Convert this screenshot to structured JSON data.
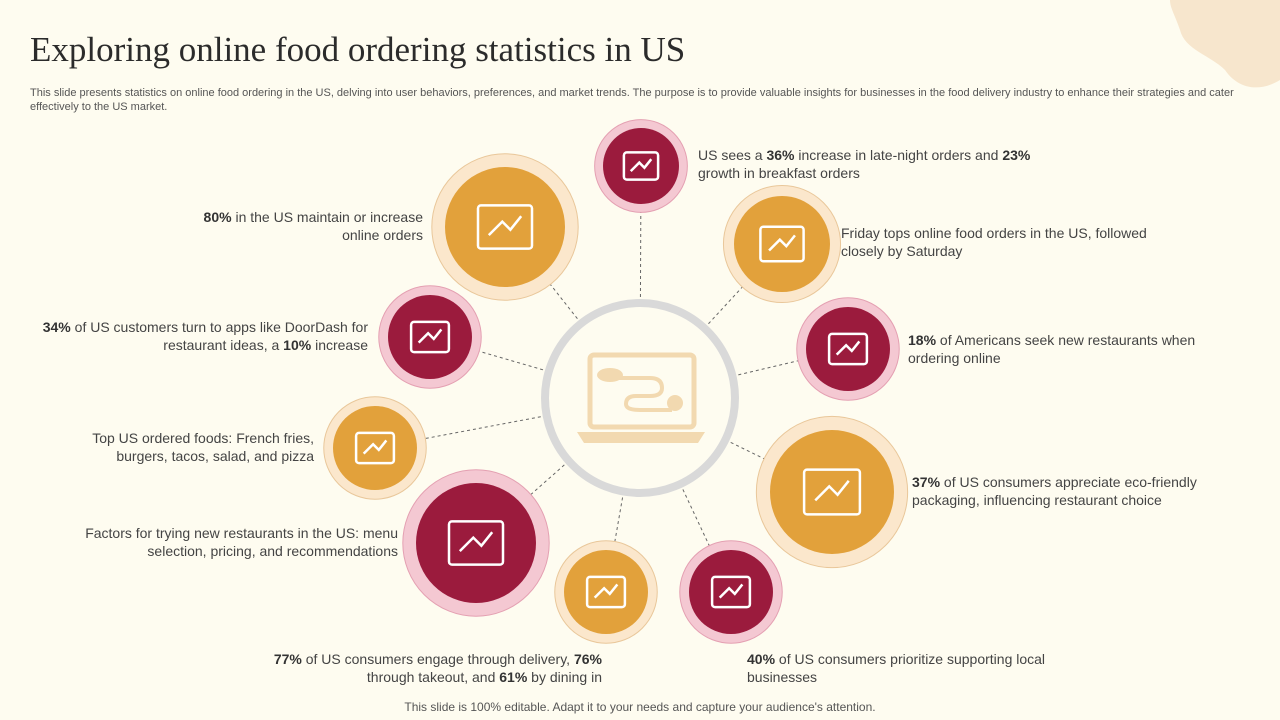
{
  "header": {
    "title": "Exploring online food ordering statistics in US",
    "description": "This slide presents statistics on online food ordering in the US, delving into user behaviors, preferences, and market trends. The purpose is to provide valuable insights for businesses in the food delivery industry to enhance their strategies and cater effectively to the US market."
  },
  "items": [
    {
      "runs": [
        {
          "text": "US sees a "
        },
        {
          "text": "36%",
          "bold": true
        },
        {
          "text": " increase in late-night orders and "
        },
        {
          "text": "23%",
          "bold": true
        },
        {
          "text": " growth in breakfast orders"
        }
      ]
    },
    {
      "runs": [
        {
          "text": "Friday tops online food orders in the US, followed closely by Saturday"
        }
      ]
    },
    {
      "runs": [
        {
          "text": "18%",
          "bold": true
        },
        {
          "text": " of Americans seek new restaurants when ordering online"
        }
      ]
    },
    {
      "runs": [
        {
          "text": "37%",
          "bold": true
        },
        {
          "text": " of US consumers appreciate eco-friendly packaging, influencing restaurant choice"
        }
      ]
    },
    {
      "runs": [
        {
          "text": "40%",
          "bold": true
        },
        {
          "text": " of US consumers prioritize supporting local businesses"
        }
      ]
    },
    {
      "runs": [
        {
          "text": "77%",
          "bold": true
        },
        {
          "text": " of US consumers engage through delivery, "
        },
        {
          "text": "76%",
          "bold": true
        },
        {
          "text": " through takeout, and "
        },
        {
          "text": "61%",
          "bold": true
        },
        {
          "text": " by dining in"
        }
      ]
    },
    {
      "runs": [
        {
          "text": "Factors for trying new restaurants in the US: menu selection, pricing, and recommendations"
        }
      ]
    },
    {
      "runs": [
        {
          "text": "Top US ordered foods: French fries, burgers, tacos, salad, and pizza"
        }
      ]
    },
    {
      "runs": [
        {
          "text": "34%",
          "bold": true
        },
        {
          "text": " of US customers turn to apps like DoorDash for restaurant ideas, a "
        },
        {
          "text": "10%",
          "bold": true
        },
        {
          "text": " increase"
        }
      ]
    },
    {
      "runs": [
        {
          "text": "80%",
          "bold": true
        },
        {
          "text": " in the US maintain or increase online orders"
        }
      ]
    }
  ],
  "footer": {
    "note": "This slide is 100% editable. Adapt it to your needs and capture your audience's attention."
  }
}
